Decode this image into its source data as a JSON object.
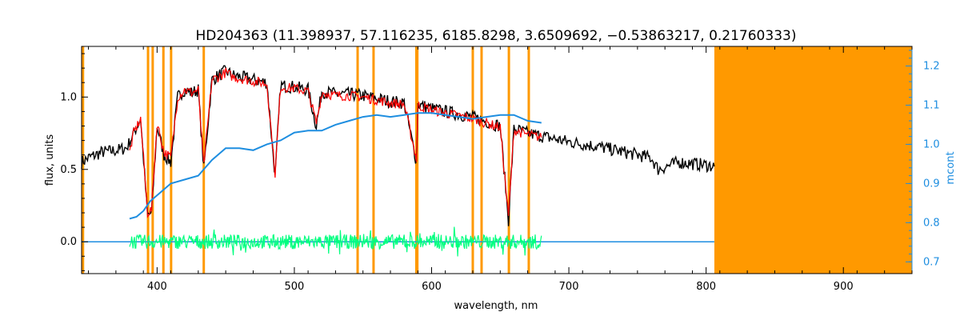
{
  "chart_data": {
    "type": "line",
    "title": "HD204363   (11.398937, 57.116235, 6185.8298, 3.6509692, −0.53863217, 0.21760333)",
    "xlabel": "wavelength, nm",
    "ylabel": "flux, units",
    "y2label": "mcont",
    "xlim": [
      345,
      950
    ],
    "ylim": [
      -0.22,
      1.35
    ],
    "y2lim": [
      0.67,
      1.25
    ],
    "xticks": [
      400,
      500,
      600,
      700,
      800,
      900
    ],
    "yticks": [
      0.0,
      0.5,
      1.0
    ],
    "y2ticks": [
      0.7,
      0.8,
      0.9,
      1.0,
      1.1,
      1.2
    ],
    "xtick_labels": [
      "400",
      "500",
      "600",
      "700",
      "800",
      "900"
    ],
    "ytick_labels": [
      "0.0",
      "0.5",
      "1.0"
    ],
    "y2tick_labels": [
      "0.7",
      "0.8",
      "0.9",
      "1.0",
      "1.1",
      "1.2"
    ],
    "colors": {
      "observed": "#000000",
      "model": "#ff0000",
      "continuum": "#1e8ee0",
      "residual": "#00ff7f",
      "mask": "#ff9900"
    },
    "masked_lines_nm": [
      346,
      393.4,
      396.8,
      404.6,
      410.2,
      434.0,
      546.1,
      557.7,
      588.9,
      589.6,
      630.0,
      636.4,
      656.3,
      670.8
    ],
    "masked_region_nm": [
      806,
      950
    ],
    "series": [
      {
        "key": "observed",
        "x": [
          345,
          350,
          360,
          370,
          378,
          383,
          388,
          393,
          396,
          400,
          405,
          410,
          415,
          420,
          425,
          430,
          434,
          440,
          445,
          450,
          455,
          460,
          470,
          480,
          486,
          490,
          500,
          510,
          516,
          520,
          530,
          540,
          550,
          560,
          570,
          580,
          589,
          590,
          600,
          610,
          620,
          630,
          640,
          650,
          656,
          660,
          670,
          680,
          690,
          700,
          720,
          740,
          760,
          765,
          780,
          800,
          806
        ],
        "y": [
          0.55,
          0.58,
          0.62,
          0.63,
          0.65,
          0.75,
          0.85,
          0.18,
          0.2,
          0.8,
          0.6,
          0.55,
          1.0,
          1.05,
          1.03,
          1.05,
          0.5,
          1.12,
          1.15,
          1.18,
          1.15,
          1.14,
          1.12,
          1.1,
          0.45,
          1.08,
          1.07,
          1.05,
          0.8,
          1.04,
          1.02,
          1.02,
          1.01,
          0.99,
          0.97,
          0.96,
          0.55,
          0.95,
          0.92,
          0.9,
          0.88,
          0.86,
          0.83,
          0.8,
          0.15,
          0.78,
          0.75,
          0.73,
          0.71,
          0.69,
          0.66,
          0.62,
          0.58,
          0.5,
          0.55,
          0.53,
          0.52
        ]
      },
      {
        "key": "model",
        "x": [
          380,
          383,
          388,
          393,
          396,
          400,
          405,
          410,
          415,
          420,
          425,
          430,
          434,
          440,
          445,
          450,
          455,
          460,
          470,
          480,
          486,
          490,
          500,
          510,
          516,
          520,
          530,
          540,
          550,
          560,
          570,
          580,
          589,
          590,
          600,
          610,
          620,
          630,
          640,
          650,
          656,
          660,
          670,
          680
        ],
        "y": [
          0.62,
          0.75,
          0.85,
          0.2,
          0.22,
          0.82,
          0.62,
          0.58,
          1.0,
          1.05,
          1.03,
          1.05,
          0.52,
          1.12,
          1.14,
          1.17,
          1.14,
          1.13,
          1.11,
          1.09,
          0.47,
          1.07,
          1.06,
          1.04,
          0.82,
          1.03,
          1.01,
          1.01,
          1.0,
          0.98,
          0.96,
          0.95,
          0.57,
          0.94,
          0.91,
          0.89,
          0.87,
          0.85,
          0.82,
          0.79,
          0.17,
          0.77,
          0.74,
          0.72
        ]
      },
      {
        "key": "continuum",
        "axis": "right",
        "x": [
          380,
          385,
          390,
          395,
          400,
          410,
          420,
          430,
          440,
          450,
          460,
          470,
          480,
          490,
          500,
          510,
          520,
          530,
          540,
          550,
          560,
          570,
          580,
          590,
          600,
          610,
          620,
          630,
          640,
          650,
          660,
          670,
          680
        ],
        "y": [
          0.81,
          0.815,
          0.83,
          0.855,
          0.87,
          0.9,
          0.91,
          0.92,
          0.96,
          0.99,
          0.99,
          0.985,
          1.0,
          1.01,
          1.03,
          1.035,
          1.035,
          1.05,
          1.06,
          1.07,
          1.075,
          1.07,
          1.075,
          1.08,
          1.08,
          1.075,
          1.07,
          1.065,
          1.07,
          1.075,
          1.075,
          1.06,
          1.055
        ]
      },
      {
        "key": "residual",
        "x": [
          380,
          680
        ],
        "y": [
          0.0,
          0.0
        ],
        "scatter_amplitude": 0.05
      },
      {
        "key": "zero-line",
        "x": [
          345,
          806
        ],
        "y": [
          0.0,
          0.0
        ]
      }
    ]
  }
}
